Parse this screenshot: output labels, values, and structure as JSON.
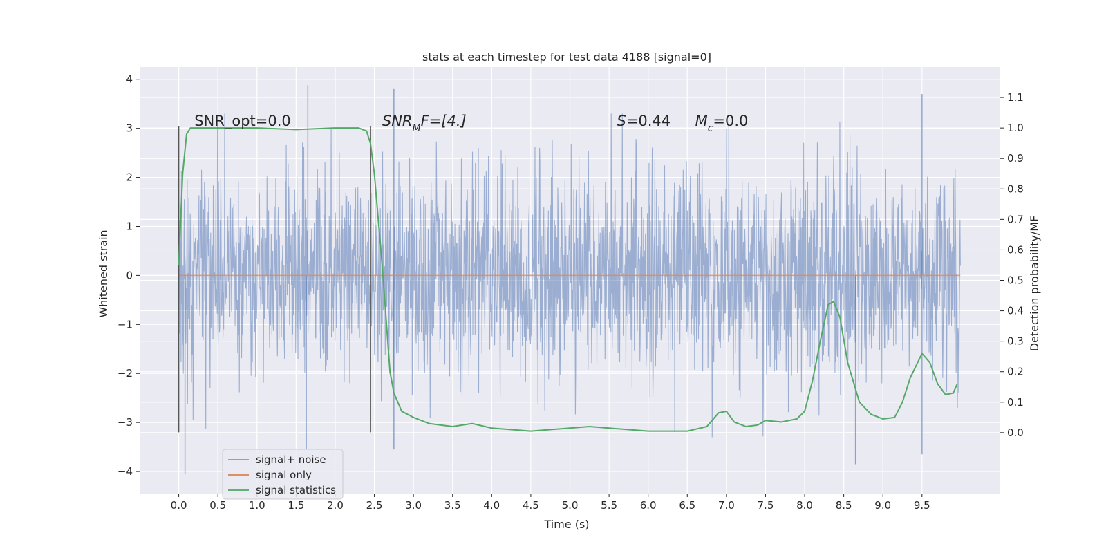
{
  "chart_data": {
    "type": "line",
    "title": "stats at each timestep for test data 4188 [signal=0]",
    "xlabel": "Time (s)",
    "ylabel": "Whitened strain",
    "y2label": "Detection probability/MF",
    "xlim": [
      -0.5,
      10.5
    ],
    "ylim": [
      -4.45,
      4.25
    ],
    "y2lim": [
      -0.2,
      1.2
    ],
    "x_ticks": [
      0.0,
      0.5,
      1.0,
      1.5,
      2.0,
      2.5,
      3.0,
      3.5,
      4.0,
      4.5,
      5.0,
      5.5,
      6.0,
      6.5,
      7.0,
      7.5,
      8.0,
      8.5,
      9.0,
      9.5
    ],
    "x_tick_labels": [
      "0.0",
      "0.5",
      "1.0",
      "1.5",
      "2.0",
      "2.5",
      "3.0",
      "3.5",
      "4.0",
      "4.5",
      "5.0",
      "5.5",
      "6.0",
      "6.5",
      "7.0",
      "7.5",
      "8.0",
      "8.5",
      "9.0",
      "9.5"
    ],
    "y_ticks": [
      4,
      3,
      2,
      1,
      0,
      -1,
      -2,
      -3,
      -4
    ],
    "y_tick_labels": [
      "4",
      "3",
      "2",
      "1",
      "0",
      "−1",
      "−2",
      "−3",
      "−4"
    ],
    "y2_ticks": [
      1.1,
      1.0,
      0.9,
      0.8,
      0.7,
      0.6,
      0.5,
      0.4,
      0.3,
      0.2,
      0.1,
      0.0
    ],
    "y2_tick_labels": [
      "1.1",
      "1.0",
      "0.9",
      "0.8",
      "0.7",
      "0.6",
      "0.5",
      "0.4",
      "0.3",
      "0.2",
      "0.1",
      "0.0"
    ],
    "grid": true,
    "legend_position": "lower-left",
    "series": [
      {
        "name": "signal+ noise",
        "axis": "left",
        "color": "#4c72b0",
        "opacity": 0.5,
        "x_range": [
          0.0,
          9.99
        ],
        "typical_envelope": [
          -1.8,
          1.8
        ],
        "peaks": [
          {
            "x": 0.08,
            "y": -4.05
          },
          {
            "x": 1.65,
            "y": 3.88
          },
          {
            "x": 1.63,
            "y": -3.55
          },
          {
            "x": 2.75,
            "y": 3.8
          },
          {
            "x": 2.75,
            "y": -3.55
          },
          {
            "x": 8.65,
            "y": -3.85
          },
          {
            "x": 9.5,
            "y": 3.7
          },
          {
            "x": 9.5,
            "y": -3.65
          }
        ]
      },
      {
        "name": "signal only",
        "axis": "left",
        "color": "#dd8452",
        "x": [
          0.0,
          9.99
        ],
        "y": [
          0.0,
          0.0
        ]
      },
      {
        "name": "signal statistics",
        "axis": "right",
        "color": "#55a868",
        "x": [
          0.0,
          0.05,
          0.1,
          0.15,
          0.25,
          0.5,
          1.0,
          1.5,
          2.0,
          2.3,
          2.4,
          2.45,
          2.5,
          2.6,
          2.7,
          2.75,
          2.85,
          3.0,
          3.2,
          3.5,
          3.75,
          4.0,
          4.5,
          5.0,
          5.25,
          5.5,
          6.0,
          6.5,
          6.75,
          6.9,
          7.0,
          7.1,
          7.25,
          7.4,
          7.5,
          7.7,
          7.9,
          8.0,
          8.1,
          8.2,
          8.3,
          8.37,
          8.45,
          8.55,
          8.7,
          8.85,
          9.0,
          9.15,
          9.25,
          9.35,
          9.5,
          9.6,
          9.7,
          9.8,
          9.9,
          9.95
        ],
        "y": [
          0.55,
          0.85,
          0.98,
          1.0,
          1.0,
          1.0,
          1.0,
          0.995,
          1.0,
          1.0,
          0.99,
          0.95,
          0.85,
          0.55,
          0.2,
          0.13,
          0.07,
          0.05,
          0.03,
          0.02,
          0.03,
          0.015,
          0.005,
          0.015,
          0.02,
          0.015,
          0.005,
          0.005,
          0.02,
          0.065,
          0.07,
          0.035,
          0.02,
          0.025,
          0.04,
          0.035,
          0.045,
          0.07,
          0.17,
          0.3,
          0.42,
          0.43,
          0.38,
          0.23,
          0.1,
          0.06,
          0.045,
          0.05,
          0.1,
          0.18,
          0.26,
          0.23,
          0.16,
          0.125,
          0.13,
          0.16
        ]
      }
    ],
    "vertical_markers": [
      {
        "x": 0.0,
        "y_from": -3.2,
        "y_to": 3.05
      },
      {
        "x": 2.45,
        "y_from": -3.2,
        "y_to": 3.05
      }
    ],
    "annotations": [
      {
        "x": 0.2,
        "y": 3.05,
        "text": "SNR_opt=0.0"
      },
      {
        "x": 2.6,
        "y": 3.05,
        "text": "SNR",
        "subscript": "M",
        "suffix": "F=[4.]"
      },
      {
        "x": 5.6,
        "y": 3.05,
        "text": "S",
        "suffix": "=0.44"
      },
      {
        "x": 6.6,
        "y": 3.05,
        "text": "M",
        "subscript": "c",
        "suffix": "=0.0"
      }
    ]
  }
}
